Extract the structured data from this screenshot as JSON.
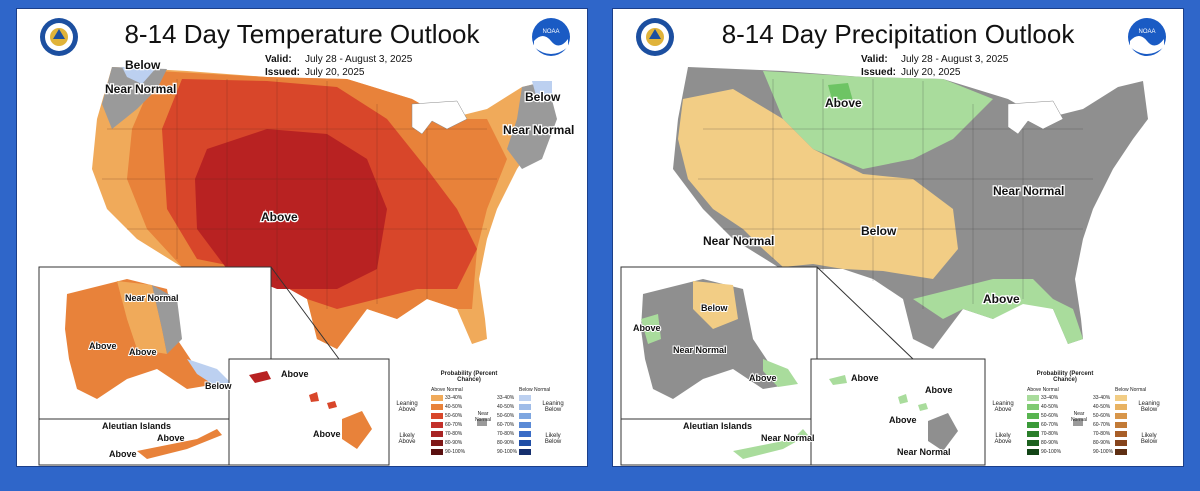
{
  "colors": {
    "background": "#2f66c9",
    "temp_near_normal": "#9a9a9a",
    "temp_above_33": "#f0aa5a",
    "temp_above_40": "#e8823a",
    "temp_above_50": "#d8462a",
    "temp_above_60": "#b82222",
    "temp_below_33": "#bcd0f0",
    "prcp_near_normal": "#8f8f8f",
    "prcp_below_33": "#f2cd85",
    "prcp_above_33": "#a9dc9c",
    "prcp_above_40": "#6ec464"
  },
  "temperature": {
    "title": "8-14 Day Temperature Outlook",
    "valid_label": "Valid:",
    "valid_value": "July 28 - August 3, 2025",
    "issued_label": "Issued:",
    "issued_value": "July 20, 2025",
    "seal_icon": "commerce-seal-icon",
    "logo_icon": "noaa-logo-icon",
    "map_labels": {
      "below_nw": "Below",
      "near_normal_nw": "Near Normal",
      "above_center": "Above",
      "below_ne": "Below",
      "near_normal_ne": "Near Normal",
      "ak_near_normal": "Near Normal",
      "ak_above_w": "Above",
      "ak_above_s": "Above",
      "ak_below": "Below",
      "aleutian_title": "Aleutian Islands",
      "aleutian_above1": "Above",
      "aleutian_above2": "Above",
      "hi_above1": "Above",
      "hi_above2": "Above"
    }
  },
  "precipitation": {
    "title": "8-14 Day Precipitation Outlook",
    "valid_label": "Valid:",
    "valid_value": "July 28 - August 3, 2025",
    "issued_label": "Issued:",
    "issued_value": "July 20, 2025",
    "seal_icon": "commerce-seal-icon",
    "logo_icon": "noaa-logo-icon",
    "map_labels": {
      "above_north": "Above",
      "near_normal_east": "Near Normal",
      "near_normal_west": "Near Normal",
      "below_center": "Below",
      "above_se": "Above",
      "ak_below": "Below",
      "ak_above_w": "Above",
      "ak_near_normal": "Near Normal",
      "ak_above_s": "Above",
      "aleutian_title": "Aleutian Islands",
      "aleutian_near_normal": "Near Normal",
      "hi_above1": "Above",
      "hi_above2": "Above",
      "hi_above3": "Above",
      "hi_near_normal": "Near Normal"
    }
  },
  "legend_temp": {
    "title": "Probability (Percent Chance)",
    "col_a": "Above Normal",
    "col_b": "Below Normal",
    "leaning_above": "Leaning Above",
    "likely_above": "Likely Above",
    "leaning_below": "Leaning Below",
    "likely_below": "Likely Below",
    "near_normal": "Near Normal",
    "ranges": [
      "33-40%",
      "40-50%",
      "50-60%",
      "60-70%",
      "70-80%",
      "80-90%",
      "90-100%"
    ],
    "above_colors": [
      "#f0aa5a",
      "#e8823a",
      "#d8462a",
      "#c3302a",
      "#a82424",
      "#7f1818",
      "#5a1010"
    ],
    "below_colors": [
      "#bcd0f0",
      "#9fbce8",
      "#7ea6e0",
      "#5a8ad6",
      "#3a6cc6",
      "#1f4ea6",
      "#152f6e"
    ]
  },
  "legend_prcp": {
    "title": "Probability (Percent Chance)",
    "col_a": "Above Normal",
    "col_b": "Below Normal",
    "leaning_above": "Leaning Above",
    "likely_above": "Likely Above",
    "leaning_below": "Leaning Below",
    "likely_below": "Likely Below",
    "near_normal": "Near Normal",
    "ranges": [
      "33-40%",
      "40-50%",
      "50-60%",
      "60-70%",
      "70-80%",
      "80-90%",
      "90-100%"
    ],
    "above_colors": [
      "#a9dc9c",
      "#7fca72",
      "#58b450",
      "#3a9a38",
      "#2a7e2a",
      "#1d621f",
      "#124416"
    ],
    "below_colors": [
      "#f2cd85",
      "#e8b262",
      "#d8964a",
      "#c27a36",
      "#a85e28",
      "#86441c",
      "#5e2e12"
    ]
  }
}
